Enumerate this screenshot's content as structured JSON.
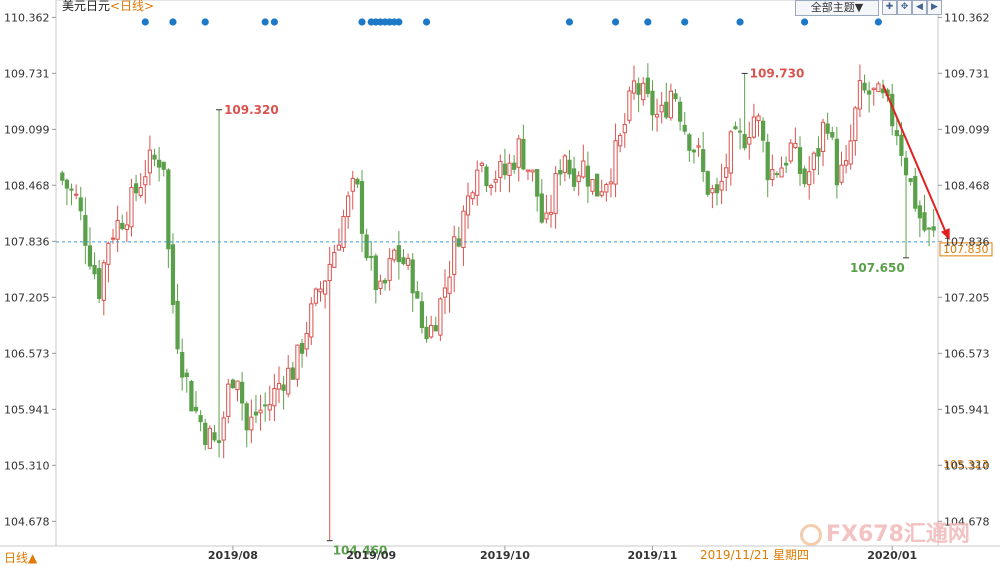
{
  "header": {
    "symbol": "美元日元",
    "period_label": "<日线>",
    "theme_button": "全部主题▼"
  },
  "footer": {
    "period_toggle": "日线▲",
    "crosshair_date": "2019/11/21 星期四",
    "watermark": "FX678汇通网"
  },
  "colors": {
    "up": "#d9534f",
    "down": "#5aa04a",
    "dashed_line": "#3a9bd6",
    "trend_arrow": "#e02020",
    "event_dot": "#1e78c8",
    "price_tag": "#e07a00"
  },
  "chart_data": {
    "type": "candlestick",
    "title": "美元日元 <日线>",
    "x_tick_labels": [
      "2019/08",
      "2019/09",
      "2019/10",
      "2019/11",
      "2020/01"
    ],
    "y_ticks": [
      110.362,
      109.731,
      109.099,
      108.468,
      107.836,
      107.205,
      106.573,
      105.941,
      105.31,
      104.678
    ],
    "y_ticks_right": [
      "110.362",
      "109.731",
      "109.099",
      "108.468",
      "107.836",
      "107.205",
      "106.573",
      "105.941",
      "105.310",
      "104.678"
    ],
    "ylim": [
      104.4,
      110.4
    ],
    "current_price": 107.83,
    "current_price_label": "107.830",
    "right_tag_label": "105.323",
    "right_tag_value": 105.323,
    "annotations": [
      {
        "label": "109.320",
        "value": 109.32,
        "candle_index": 34,
        "kind": "high"
      },
      {
        "label": "104.460",
        "value": 104.46,
        "candle_index": 59,
        "kind": "low"
      },
      {
        "label": "109.730",
        "value": 109.73,
        "candle_index": 150,
        "kind": "high"
      },
      {
        "label": "107.650",
        "value": 107.65,
        "candle_index": 185,
        "kind": "low"
      }
    ],
    "trend_arrow": {
      "from_index": 180,
      "from_value": 109.6,
      "to_index": 192,
      "to_value": 107.85
    },
    "event_dot_indices": [
      18,
      24,
      31,
      44,
      46,
      66,
      68,
      69,
      70,
      71,
      72,
      73,
      74,
      80,
      111,
      121,
      128,
      136,
      149,
      163,
      179
    ]
  }
}
